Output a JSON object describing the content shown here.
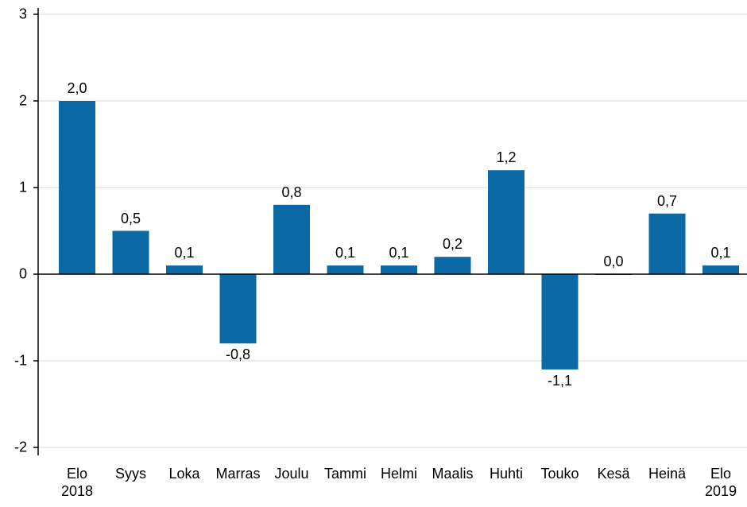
{
  "chart_data": {
    "type": "bar",
    "categories": [
      "Elo\n2018",
      "Syys",
      "Loka",
      "Marras",
      "Joulu",
      "Tammi",
      "Helmi",
      "Maalis",
      "Huhti",
      "Touko",
      "Kesä",
      "Heinä",
      "Elo\n2019"
    ],
    "values": [
      2.0,
      0.5,
      0.1,
      -0.8,
      0.8,
      0.1,
      0.1,
      0.2,
      1.2,
      -1.1,
      0.0,
      0.7,
      0.1
    ],
    "value_labels": [
      "2,0",
      "0,5",
      "0,1",
      "-0,8",
      "0,8",
      "0,1",
      "0,1",
      "0,2",
      "1,2",
      "-1,1",
      "0,0",
      "0,7",
      "0,1"
    ],
    "color": "#0b6aa6",
    "ylim": [
      -2,
      3
    ],
    "yticks": [
      -2,
      -1,
      0,
      1,
      2,
      3
    ],
    "grid": true
  }
}
